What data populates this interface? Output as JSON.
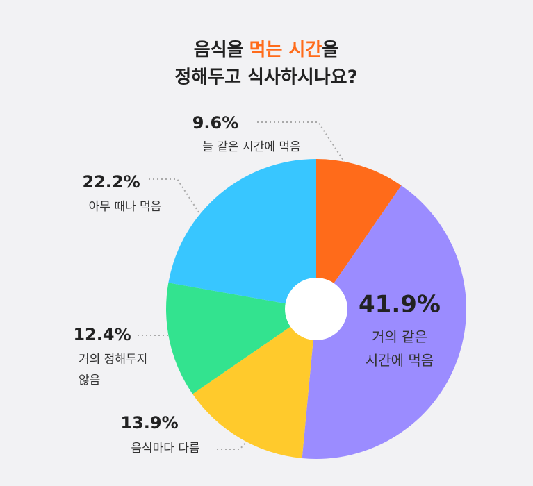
{
  "chart_data": {
    "type": "pie",
    "title": {
      "line1": [
        "음식을",
        "먹는 시간",
        "을"
      ],
      "line2": "정해두고 식사하시나요?",
      "highlight_color": "#ff6b1a"
    },
    "categories": [
      "늘 같은 시간에 먹음",
      "거의 같은\n시간에 먹음",
      "음식마다 다름",
      "거의 정해두지\n않음",
      "아무 때나 먹음"
    ],
    "values": [
      9.6,
      41.9,
      13.9,
      12.4,
      22.2
    ],
    "value_labels": [
      "9.6%",
      "41.9%",
      "13.9%",
      "12.4%",
      "22.2%"
    ],
    "colors": [
      "#ff6b1a",
      "#9b8cff",
      "#ffca2c",
      "#33e38f",
      "#38c6ff"
    ]
  }
}
